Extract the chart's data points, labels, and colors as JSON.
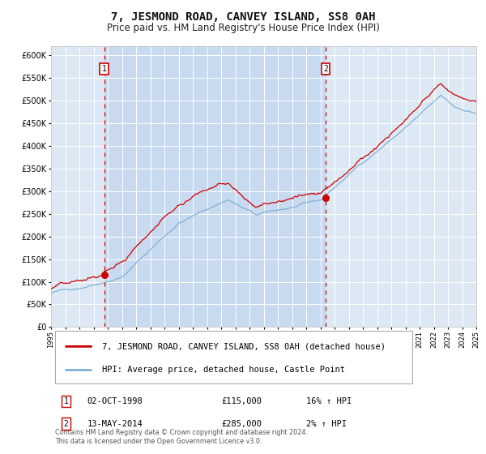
{
  "title": "7, JESMOND ROAD, CANVEY ISLAND, SS8 0AH",
  "subtitle": "Price paid vs. HM Land Registry's House Price Index (HPI)",
  "background_color": "#ffffff",
  "plot_bg_color": "#dce9f5",
  "grid_color": "#ffffff",
  "sale1_date": "02-OCT-1998",
  "sale1_price": 115000,
  "sale1_price_str": "£115,000",
  "sale1_pct": "16% ↑ HPI",
  "sale2_date": "13-MAY-2014",
  "sale2_price": 285000,
  "sale2_price_str": "£285,000",
  "sale2_pct": "2% ↑ HPI",
  "legend_line1": "7, JESMOND ROAD, CANVEY ISLAND, SS8 0AH (detached house)",
  "legend_line2": "HPI: Average price, detached house, Castle Point",
  "footer": "Contains HM Land Registry data © Crown copyright and database right 2024.\nThis data is licensed under the Open Government Licence v3.0.",
  "ylim": [
    0,
    620000
  ],
  "yticks": [
    0,
    50000,
    100000,
    150000,
    200000,
    250000,
    300000,
    350000,
    400000,
    450000,
    500000,
    550000,
    600000
  ],
  "sale1_x": 1998.75,
  "sale2_x": 2014.37,
  "line_color_red": "#cc0000",
  "line_color_blue": "#7fb0d8",
  "dot_color": "#cc0000",
  "dashed_line_color": "#cc0000",
  "shaded_color": "#c8daf0",
  "label_box_color": "#cc0000",
  "title_fontsize": 10,
  "subtitle_fontsize": 8.5
}
